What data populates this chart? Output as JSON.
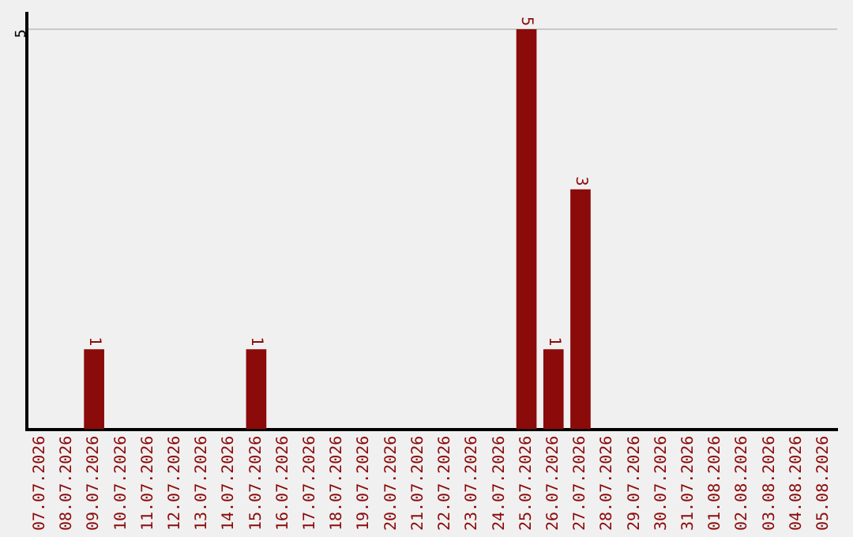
{
  "chart_data": {
    "type": "bar",
    "categories": [
      "07.07.2026",
      "08.07.2026",
      "09.07.2026",
      "10.07.2026",
      "11.07.2026",
      "12.07.2026",
      "13.07.2026",
      "14.07.2026",
      "15.07.2026",
      "16.07.2026",
      "17.07.2026",
      "18.07.2026",
      "19.07.2026",
      "20.07.2026",
      "21.07.2026",
      "22.07.2026",
      "23.07.2026",
      "24.07.2026",
      "25.07.2026",
      "26.07.2026",
      "27.07.2026",
      "28.07.2026",
      "29.07.2026",
      "30.07.2026",
      "31.07.2026",
      "01.08.2026",
      "02.08.2026",
      "03.08.2026",
      "04.08.2026",
      "05.08.2026"
    ],
    "values": [
      0,
      0,
      1,
      0,
      0,
      0,
      0,
      0,
      1,
      0,
      0,
      0,
      0,
      0,
      0,
      0,
      0,
      0,
      5,
      1,
      3,
      0,
      0,
      0,
      0,
      0,
      0,
      0,
      0,
      0
    ],
    "value_labels": [
      null,
      null,
      "1",
      null,
      null,
      null,
      null,
      null,
      "1",
      null,
      null,
      null,
      null,
      null,
      null,
      null,
      null,
      null,
      "5",
      "1",
      "3",
      null,
      null,
      null,
      null,
      null,
      null,
      null,
      null,
      null
    ],
    "color": "#8b0a0a",
    "ylim": [
      0,
      5.2
    ],
    "yticks": [
      5
    ],
    "grid": "y",
    "legend": false
  }
}
